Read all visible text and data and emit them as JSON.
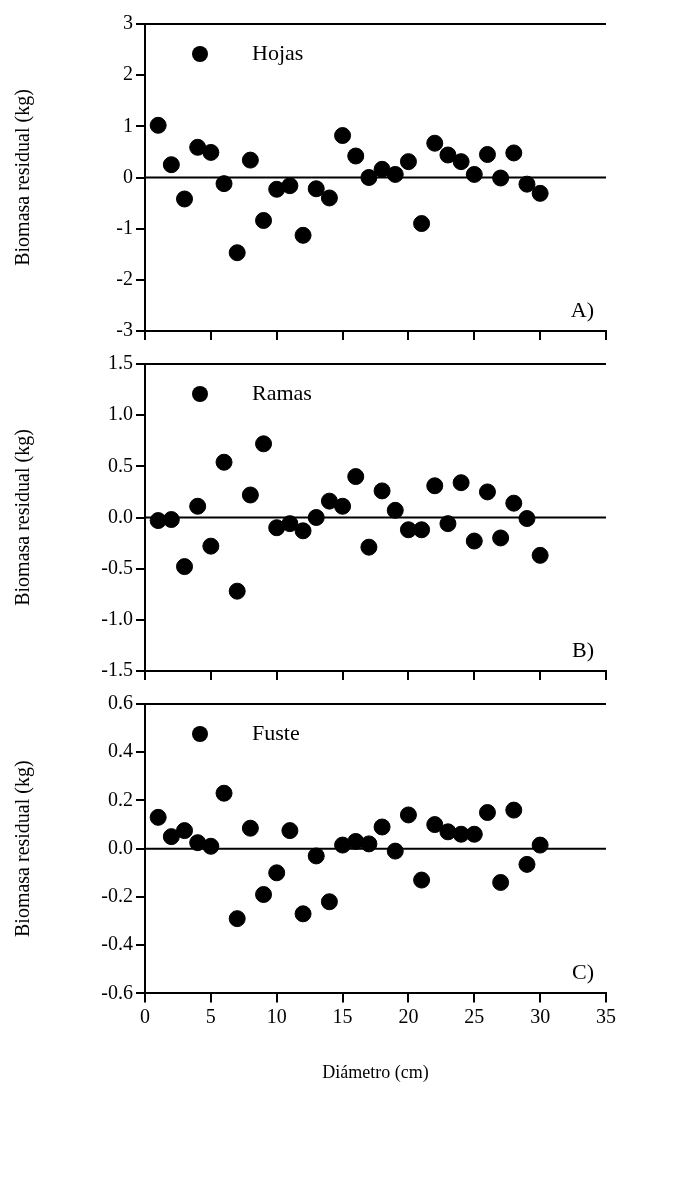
{
  "chart_data": [
    {
      "type": "scatter",
      "x": [
        1,
        2,
        3,
        4,
        5,
        6,
        7,
        8,
        9,
        10,
        11,
        12,
        13,
        14,
        15,
        16,
        17,
        18,
        19,
        20,
        21,
        22,
        23,
        24,
        25,
        26,
        27,
        28,
        29,
        30
      ],
      "series": [
        {
          "name": "Hojas",
          "color": "#000000",
          "values": [
            1.02,
            0.25,
            -0.42,
            0.59,
            0.49,
            -0.12,
            -1.47,
            0.34,
            -0.84,
            -0.23,
            -0.16,
            -1.13,
            -0.22,
            -0.4,
            0.82,
            0.42,
            0.0,
            0.16,
            0.06,
            0.31,
            -0.9,
            0.67,
            0.44,
            0.31,
            0.06,
            0.45,
            -0.01,
            0.48,
            -0.13,
            -0.31
          ]
        }
      ],
      "xlim": [
        0,
        35
      ],
      "xticks": [
        0,
        5,
        10,
        15,
        20,
        25,
        30,
        35
      ],
      "ylim": [
        -3,
        3
      ],
      "yticks": [
        -3,
        -2,
        -1,
        0,
        1,
        2,
        3
      ],
      "ylabel": "Biomasa residual (kg)",
      "legend": "top left",
      "marker": "circle",
      "tick_labels": "y",
      "ref_lines": [
        {
          "axis": "y",
          "value": 0
        }
      ],
      "annotations": [
        "A)"
      ]
    },
    {
      "type": "scatter",
      "x": [
        1,
        2,
        3,
        4,
        5,
        6,
        7,
        8,
        9,
        10,
        11,
        12,
        13,
        14,
        15,
        16,
        17,
        18,
        19,
        20,
        21,
        22,
        23,
        24,
        25,
        26,
        27,
        28,
        29,
        30
      ],
      "series": [
        {
          "name": "Ramas",
          "color": "#000000",
          "values": [
            -0.03,
            -0.02,
            -0.48,
            0.11,
            -0.28,
            0.54,
            -0.72,
            0.22,
            0.72,
            -0.1,
            -0.06,
            -0.13,
            0.0,
            0.16,
            0.11,
            0.4,
            -0.29,
            0.26,
            0.07,
            -0.12,
            -0.12,
            0.31,
            -0.06,
            0.34,
            -0.23,
            0.25,
            -0.2,
            0.14,
            -0.01,
            -0.37
          ]
        }
      ],
      "xlim": [
        0,
        35
      ],
      "xticks": [
        0,
        5,
        10,
        15,
        20,
        25,
        30,
        35
      ],
      "ylim": [
        -1.5,
        1.5
      ],
      "yticks": [
        {
          "value": -1.5,
          "label": "-1.5"
        },
        {
          "value": -1,
          "label": "-1.0"
        },
        {
          "value": -0.5,
          "label": "-0.5"
        },
        {
          "value": 0,
          "label": "0.0"
        },
        {
          "value": 0.5,
          "label": "0.5"
        },
        {
          "value": 1,
          "label": "1.0"
        },
        {
          "value": 1.5,
          "label": "1.5"
        }
      ],
      "ylabel": "Biomasa residual (kg)",
      "legend": "top left",
      "marker": "circle",
      "tick_labels": "y",
      "ref_lines": [
        {
          "axis": "y",
          "value": 0
        }
      ],
      "annotations": [
        "B)"
      ]
    },
    {
      "type": "scatter",
      "x": [
        1,
        2,
        3,
        4,
        5,
        6,
        7,
        8,
        9,
        10,
        11,
        12,
        13,
        14,
        15,
        16,
        17,
        18,
        19,
        20,
        21,
        22,
        23,
        24,
        25,
        26,
        27,
        28,
        29,
        30
      ],
      "series": [
        {
          "name": "Fuste",
          "color": "#000000",
          "values": [
            0.13,
            0.05,
            0.075,
            0.025,
            0.01,
            0.23,
            -0.29,
            0.085,
            -0.19,
            -0.1,
            0.075,
            -0.27,
            -0.03,
            -0.22,
            0.015,
            0.03,
            0.02,
            0.09,
            -0.01,
            0.14,
            -0.13,
            0.1,
            0.07,
            0.06,
            0.06,
            0.15,
            -0.14,
            0.16,
            -0.065,
            0.015
          ]
        }
      ],
      "xlim": [
        0,
        35
      ],
      "xticks": [
        0,
        5,
        10,
        15,
        20,
        25,
        30,
        35
      ],
      "ylim": [
        -0.6,
        0.6
      ],
      "yticks": [
        {
          "value": -0.6,
          "label": "-0.6"
        },
        {
          "value": -0.4,
          "label": "-0.4"
        },
        {
          "value": -0.2,
          "label": "-0.2"
        },
        {
          "value": 0,
          "label": "0.0"
        },
        {
          "value": 0.2,
          "label": "0.2"
        },
        {
          "value": 0.4,
          "label": "0.4"
        },
        {
          "value": 0.6,
          "label": "0.6"
        }
      ],
      "xlabel": "Diámetro (cm)",
      "ylabel": "Biomasa residual (kg)",
      "legend": "top left",
      "marker": "circle",
      "ref_lines": [
        {
          "axis": "y",
          "value": 0
        }
      ],
      "annotations": [
        "C)"
      ]
    }
  ]
}
